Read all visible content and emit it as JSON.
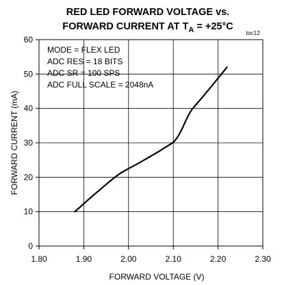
{
  "chart_data": {
    "type": "line",
    "title": {
      "line1": "RED LED FORWARD VOLTAGE vs.",
      "line2_main": "FORWARD CURRENT AT T",
      "line2_sub": "A",
      "line2_end": " = +25°C"
    },
    "tag": "toc12",
    "xlabel": "FORWARD VOLTAGE (V)",
    "ylabel": "FORWARD CURRENT (mA)",
    "xlim": [
      1.8,
      2.3
    ],
    "ylim": [
      0,
      60
    ],
    "x_ticks": [
      {
        "value": 1.8,
        "label": "1.80"
      },
      {
        "value": 1.9,
        "label": "1.90"
      },
      {
        "value": 2.0,
        "label": "2.00"
      },
      {
        "value": 2.1,
        "label": "2.10"
      },
      {
        "value": 2.2,
        "label": "2.20"
      },
      {
        "value": 2.3,
        "label": "2.30"
      }
    ],
    "y_ticks": [
      {
        "value": 0,
        "label": "0"
      },
      {
        "value": 10,
        "label": "10"
      },
      {
        "value": 20,
        "label": "20"
      },
      {
        "value": 30,
        "label": "30"
      },
      {
        "value": 40,
        "label": "40"
      },
      {
        "value": 50,
        "label": "50"
      },
      {
        "value": 60,
        "label": "60"
      }
    ],
    "grid": true,
    "annotations": [
      "MODE = FLEX LED",
      "ADC RES = 18 BITS",
      "ADC SR = 100 SPS",
      "ADC FULL SCALE = 2048nA"
    ],
    "annotation_placement": "top-left",
    "series": [
      {
        "color": "#000000",
        "x": [
          1.88,
          1.9,
          1.92,
          1.94,
          1.96,
          1.98,
          2.0,
          2.02,
          2.04,
          2.06,
          2.08,
          2.1,
          2.11,
          2.12,
          2.13,
          2.14,
          2.15,
          2.16,
          2.18,
          2.2,
          2.22
        ],
        "y": [
          10,
          12.3,
          14.6,
          16.8,
          19.0,
          21.0,
          22.5,
          23.9,
          25.4,
          26.9,
          28.5,
          30.2,
          31.8,
          34.2,
          37.0,
          39.4,
          41.0,
          42.5,
          45.6,
          48.8,
          52
        ]
      }
    ]
  }
}
